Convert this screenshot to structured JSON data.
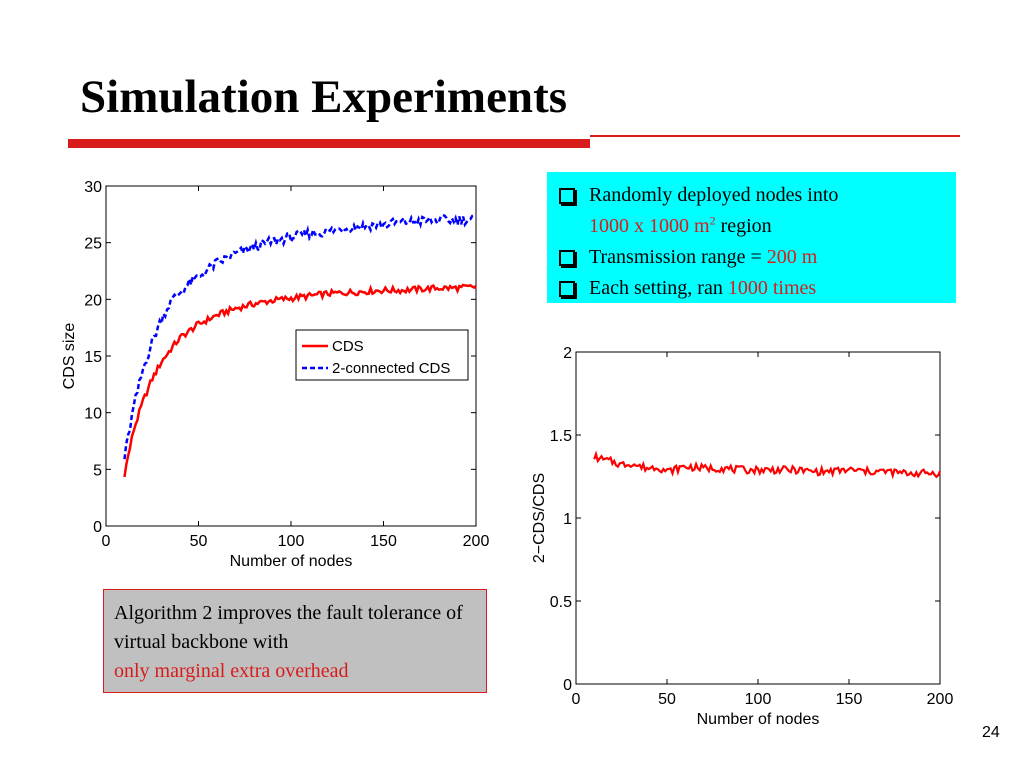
{
  "slide": {
    "title": "Simulation Experiments",
    "page_number": "24"
  },
  "bullets": {
    "items": [
      {
        "text": "Randomly deployed nodes into",
        "line2_red": "1000 x 1000 m",
        "line2_sup": "2",
        "line2_rest": " region"
      },
      {
        "text": "Transmission range = ",
        "red": "200 m"
      },
      {
        "text": "Each setting, ran ",
        "red": "1000 times"
      }
    ]
  },
  "note": {
    "text": "Algorithm 2 improves the fault tolerance of virtual backbone with",
    "red": "only marginal extra overhead"
  },
  "colors": {
    "accent_red": "#d81c1c",
    "bullet_bg": "#00ffff",
    "note_bg": "#c0c0c0",
    "series_cds": "#ff0000",
    "series_2cds": "#0000ff"
  },
  "chart_data": [
    {
      "type": "line",
      "xlabel": "Number of nodes",
      "ylabel": "CDS size",
      "xlim": [
        0,
        200
      ],
      "ylim": [
        0,
        30
      ],
      "xticks": [
        0,
        50,
        100,
        150,
        200
      ],
      "yticks": [
        0,
        5,
        10,
        15,
        20,
        25,
        30
      ],
      "grid": false,
      "legend": "center-right",
      "series": [
        {
          "name": "CDS",
          "style": "solid",
          "color": "#ff0000",
          "x": [
            10,
            15,
            20,
            25,
            30,
            35,
            40,
            45,
            50,
            60,
            70,
            80,
            90,
            100,
            110,
            120,
            130,
            140,
            150,
            160,
            170,
            180,
            190,
            200
          ],
          "y": [
            4.6,
            8.5,
            11.0,
            13.0,
            14.5,
            15.6,
            16.6,
            17.2,
            17.8,
            18.6,
            19.2,
            19.6,
            19.9,
            20.1,
            20.3,
            20.5,
            20.6,
            20.7,
            20.8,
            20.8,
            20.9,
            21.0,
            21.0,
            21.1
          ]
        },
        {
          "name": "2-connected CDS",
          "style": "dashed",
          "color": "#0000ff",
          "x": [
            10,
            15,
            20,
            25,
            30,
            35,
            40,
            45,
            50,
            60,
            70,
            80,
            90,
            100,
            110,
            120,
            130,
            140,
            150,
            160,
            170,
            180,
            190,
            200
          ],
          "y": [
            6.0,
            10.5,
            13.8,
            16.3,
            18.3,
            19.8,
            20.6,
            21.4,
            22.0,
            23.2,
            24.0,
            24.6,
            25.1,
            25.5,
            25.8,
            26.0,
            26.3,
            26.5,
            26.6,
            26.8,
            26.9,
            27.0,
            27.0,
            27.1
          ]
        }
      ]
    },
    {
      "type": "line",
      "xlabel": "Number of nodes",
      "ylabel": "2−CDS/CDS",
      "xlim": [
        0,
        200
      ],
      "ylim": [
        0,
        2
      ],
      "xticks": [
        0,
        50,
        100,
        150,
        200
      ],
      "yticks": [
        0,
        0.5,
        1,
        1.5,
        2
      ],
      "yticklabels": [
        "0",
        "0.5",
        "1",
        "1.5",
        "2"
      ],
      "grid": false,
      "series": [
        {
          "color": "#ff0000",
          "x": [
            10,
            15,
            20,
            25,
            30,
            35,
            40,
            45,
            50,
            60,
            70,
            80,
            90,
            100,
            110,
            120,
            130,
            140,
            150,
            160,
            170,
            180,
            190,
            200
          ],
          "y": [
            1.37,
            1.35,
            1.34,
            1.32,
            1.33,
            1.31,
            1.3,
            1.31,
            1.28,
            1.31,
            1.3,
            1.3,
            1.29,
            1.29,
            1.29,
            1.29,
            1.28,
            1.28,
            1.29,
            1.28,
            1.28,
            1.27,
            1.27,
            1.27
          ]
        }
      ]
    }
  ]
}
